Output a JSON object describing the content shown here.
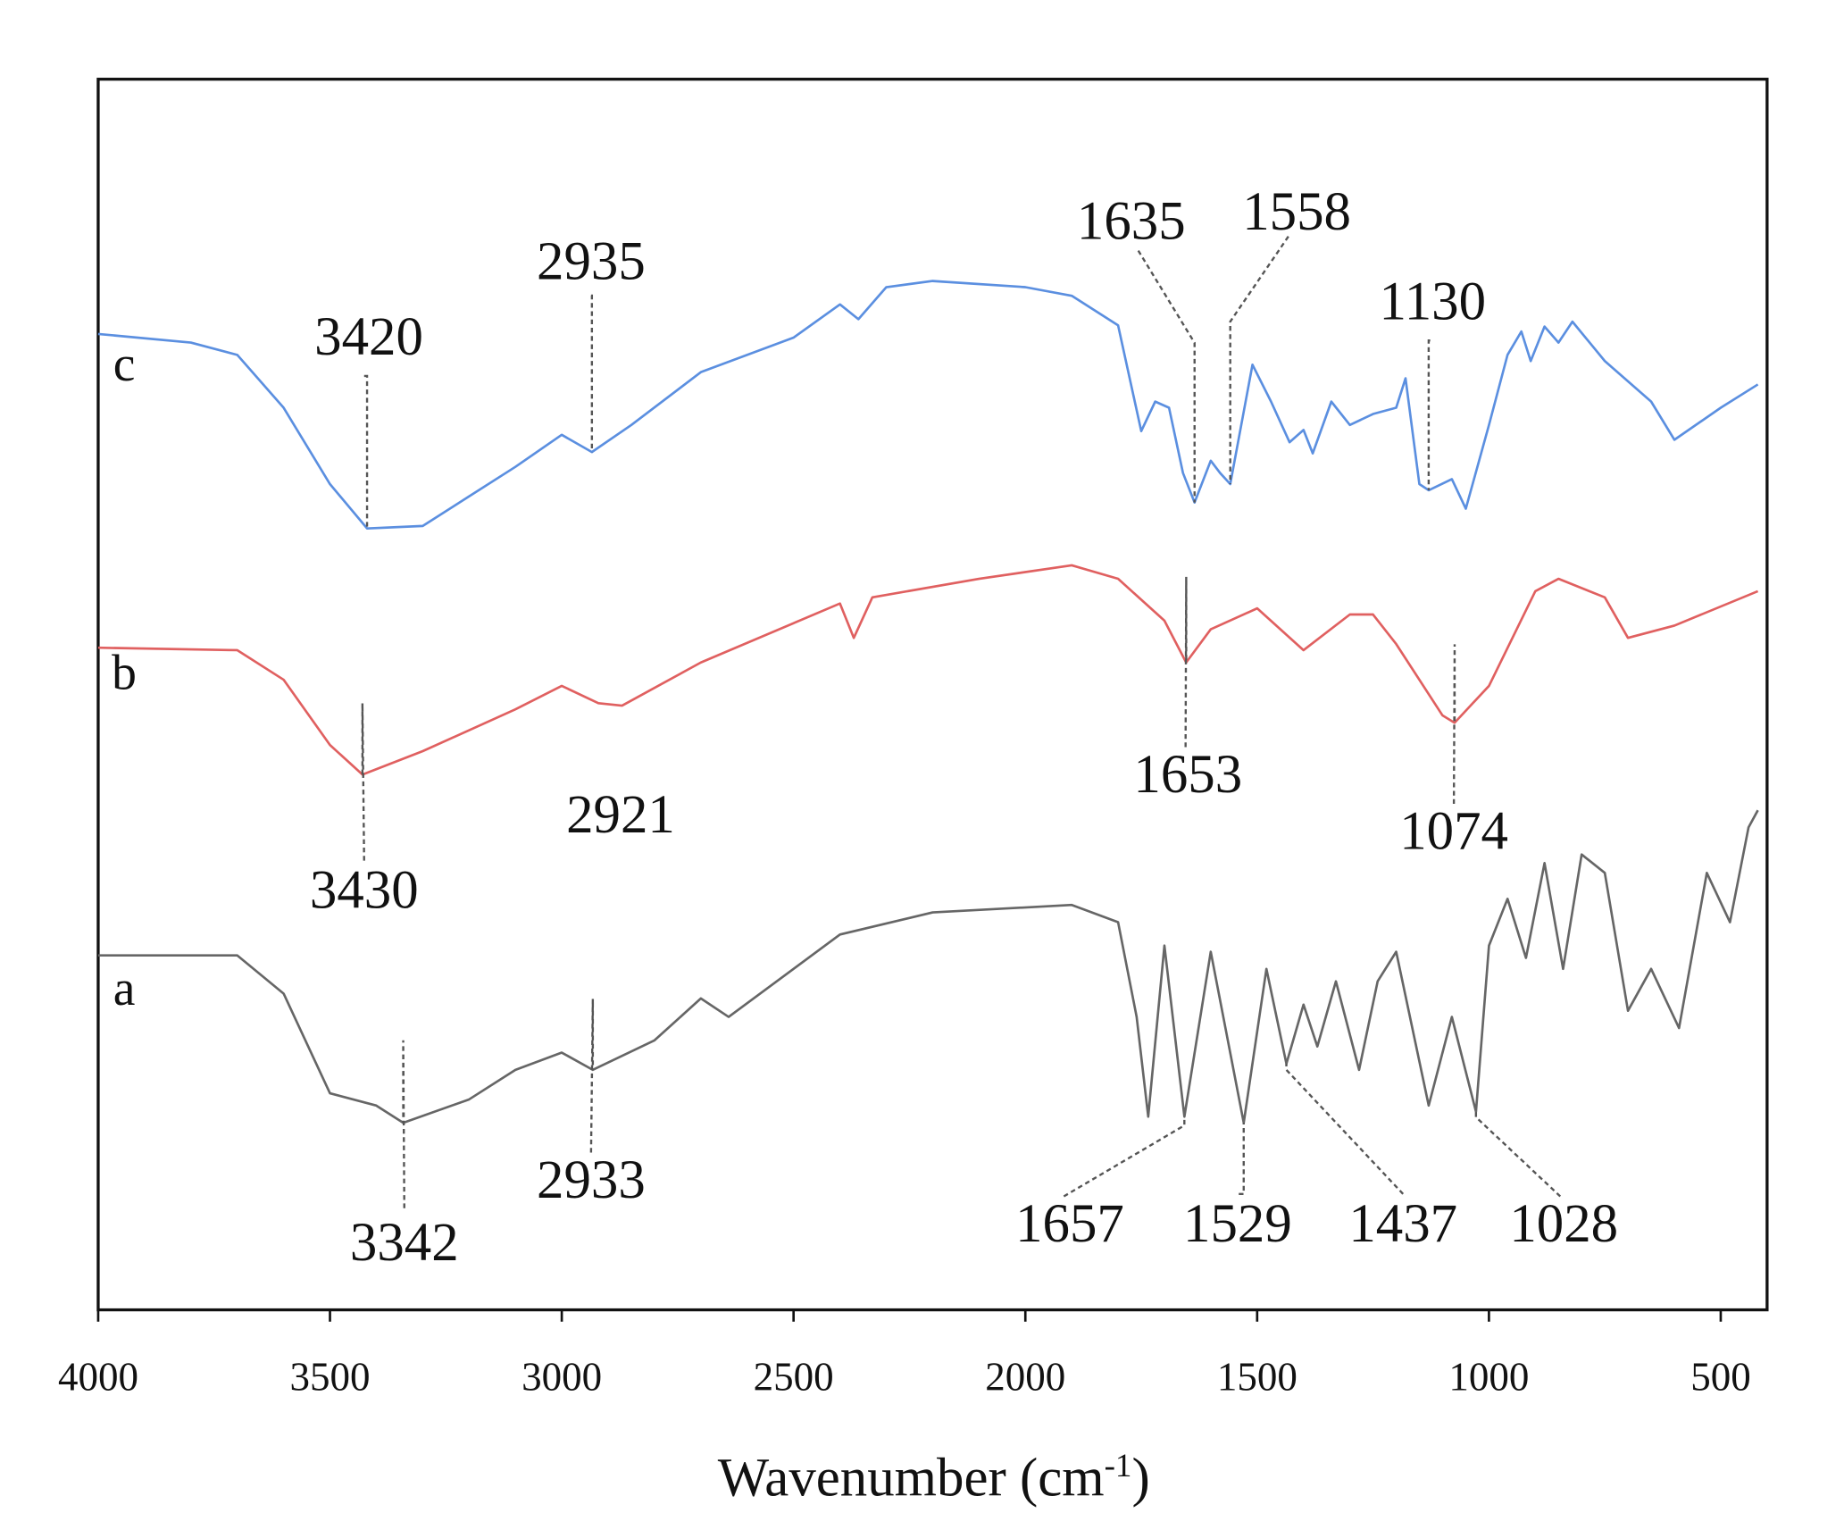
{
  "chart_data": {
    "type": "line",
    "xlim": [
      4000,
      400
    ],
    "ylim": [
      0,
      100
    ],
    "xticks": [
      4000,
      3500,
      3000,
      2500,
      2000,
      1500,
      1000,
      500
    ],
    "x_label": {
      "text": "Wavenumber (cm",
      "sup": "-1",
      "close": ")"
    },
    "peak_color": "#555555",
    "series": [
      {
        "name": "c",
        "color": "#5b8fe0",
        "x": [
          4000,
          3800,
          3700,
          3600,
          3500,
          3420,
          3300,
          3200,
          3100,
          3000,
          2935,
          2850,
          2700,
          2500,
          2400,
          2360,
          2300,
          2200,
          2000,
          1900,
          1800,
          1750,
          1720,
          1690,
          1660,
          1635,
          1600,
          1580,
          1558,
          1510,
          1470,
          1430,
          1400,
          1380,
          1340,
          1300,
          1250,
          1200,
          1180,
          1150,
          1130,
          1080,
          1050,
          1000,
          960,
          930,
          910,
          880,
          850,
          820,
          750,
          650,
          600,
          500,
          420
        ],
        "values": [
          79.3,
          78.6,
          77.6,
          73.3,
          67.1,
          63.5,
          63.7,
          66.1,
          68.5,
          71.1,
          69.7,
          71.9,
          76.2,
          79.0,
          81.7,
          80.5,
          83.1,
          83.6,
          83.1,
          82.4,
          80.0,
          71.4,
          73.8,
          73.3,
          68.0,
          65.6,
          69.0,
          68.0,
          67.1,
          76.8,
          73.8,
          70.5,
          71.5,
          69.6,
          73.8,
          71.9,
          72.8,
          73.3,
          75.7,
          67.1,
          66.6,
          67.5,
          65.1,
          71.9,
          77.6,
          79.5,
          77.1,
          79.9,
          78.6,
          80.3,
          77.1,
          73.8,
          70.7,
          73.3,
          75.2
        ],
        "peaks": [
          3420,
          2935,
          1635,
          1558,
          1130
        ]
      },
      {
        "name": "b",
        "color": "#e06060",
        "x": [
          4000,
          3700,
          3600,
          3500,
          3430,
          3300,
          3100,
          3000,
          2921,
          2870,
          2700,
          2400,
          2370,
          2330,
          2100,
          1900,
          1800,
          1700,
          1653,
          1600,
          1500,
          1400,
          1300,
          1250,
          1200,
          1100,
          1074,
          1000,
          900,
          850,
          750,
          700,
          600,
          420
        ],
        "values": [
          53.8,
          53.6,
          51.2,
          45.9,
          43.5,
          45.4,
          48.8,
          50.7,
          49.3,
          49.1,
          52.6,
          57.4,
          54.6,
          57.9,
          59.4,
          60.5,
          59.4,
          56.0,
          52.6,
          55.3,
          57.0,
          53.6,
          56.5,
          56.5,
          54.1,
          48.3,
          47.7,
          50.7,
          58.4,
          59.4,
          57.9,
          54.6,
          55.6,
          58.4
        ],
        "peaks": [
          3430,
          2921,
          1653,
          1074
        ]
      },
      {
        "name": "a",
        "color": "#666666",
        "x": [
          4000,
          3700,
          3600,
          3500,
          3400,
          3342,
          3200,
          3100,
          3000,
          2933,
          2800,
          2700,
          2640,
          2500,
          2400,
          2200,
          1900,
          1800,
          1760,
          1735,
          1700,
          1657,
          1600,
          1529,
          1480,
          1437,
          1400,
          1370,
          1330,
          1280,
          1240,
          1200,
          1130,
          1080,
          1028,
          1000,
          960,
          920,
          880,
          840,
          800,
          750,
          700,
          650,
          590,
          530,
          480,
          440,
          420
        ],
        "values": [
          28.8,
          28.8,
          25.7,
          17.6,
          16.6,
          15.2,
          17.1,
          19.5,
          20.9,
          19.5,
          21.9,
          25.3,
          23.8,
          27.7,
          30.5,
          32.3,
          32.9,
          31.5,
          23.8,
          15.7,
          29.6,
          15.7,
          29.1,
          15.2,
          27.7,
          20.0,
          24.8,
          21.4,
          26.7,
          19.5,
          26.7,
          29.1,
          16.6,
          23.8,
          16.1,
          29.6,
          33.4,
          28.6,
          36.3,
          27.7,
          37.0,
          35.5,
          24.3,
          27.7,
          22.9,
          35.5,
          31.5,
          39.2,
          40.6
        ],
        "peaks": [
          3342,
          2933,
          1657,
          1529,
          1437,
          1028
        ]
      }
    ]
  }
}
